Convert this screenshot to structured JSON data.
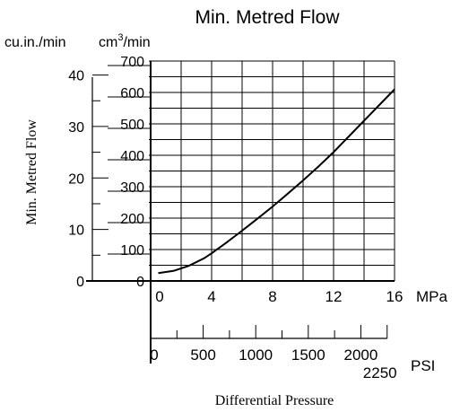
{
  "chart_data": {
    "type": "line",
    "title": "Min. Metred Flow",
    "ylabel": "Min. Metred Flow",
    "xlabel": "Differential Pressure",
    "y_unit_left": "cu.in./min",
    "y_unit_right_base": "cm",
    "y_unit_right_sup": "3",
    "y_unit_right_tail": "/min",
    "x_unit_mpa": "MPa",
    "x_unit_psi": "PSI",
    "y_ticks_cuin": [
      "0",
      "10",
      "20",
      "30",
      "40"
    ],
    "y_ticks_cm3": [
      "0",
      "100",
      "200",
      "300",
      "400",
      "500",
      "600",
      "700"
    ],
    "x_ticks_mpa": [
      "0",
      "4",
      "8",
      "12",
      "16"
    ],
    "x_ticks_psi": [
      "0",
      "500",
      "1000",
      "1500",
      "2000",
      "2250"
    ],
    "xlim_mpa": [
      0,
      16
    ],
    "ylim_cm3": [
      0,
      700
    ],
    "grid": true,
    "series": [
      {
        "x": [
          0.5,
          1.5,
          2.5,
          3.5,
          4.0,
          5.0,
          6.0,
          7.0,
          8.0,
          9.0,
          10.0,
          11.0,
          12.0,
          13.0,
          14.0,
          15.0,
          16.0
        ],
        "y": [
          25,
          32,
          48,
          72,
          88,
          123,
          160,
          198,
          237,
          278,
          320,
          364,
          410,
          460,
          510,
          560,
          610
        ]
      }
    ]
  }
}
